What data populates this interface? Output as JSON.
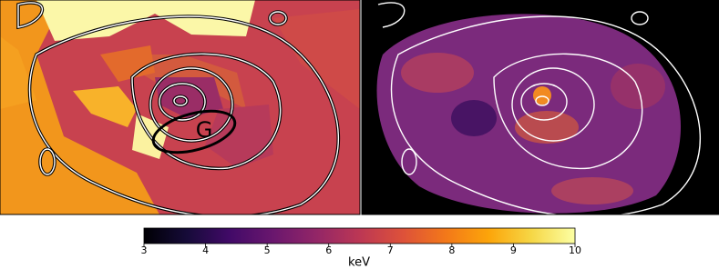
{
  "chart_data": {
    "type": "colorbar",
    "annotation": "G",
    "xlabel": "keV",
    "xlim": [
      3,
      10
    ],
    "xticks": [
      3,
      4,
      5,
      6,
      7,
      8,
      9,
      10
    ]
  }
}
